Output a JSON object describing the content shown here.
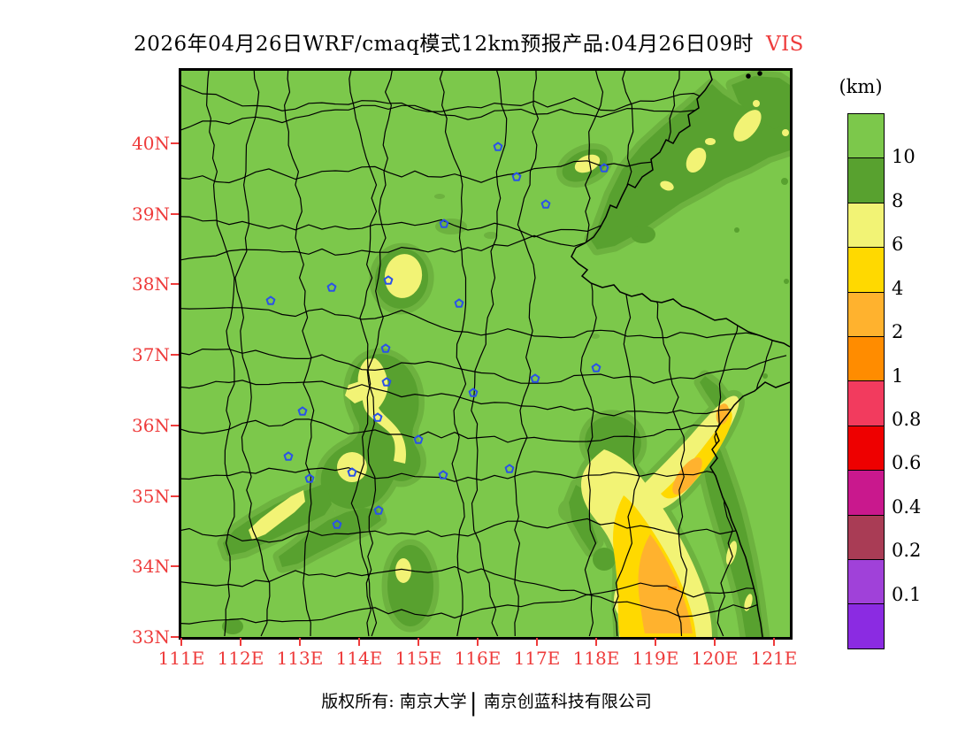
{
  "title": {
    "text": "2026年04月26日WRF/cmaq模式12km预报产品:04月26日09时",
    "variable": "VIS"
  },
  "colorbar": {
    "unit": "(km)",
    "labels": [
      "10",
      "8",
      "6",
      "4",
      "2",
      "1",
      "0.8",
      "0.6",
      "0.4",
      "0.2",
      "0.1"
    ],
    "colors": [
      "#7cc84b",
      "#58a12f",
      "#f2f375",
      "#ffd900",
      "#ffb22e",
      "#ff8c00",
      "#f23b5e",
      "#ee0000",
      "#c9188d",
      "#a93c55",
      "#a041d9",
      "#8b2be2"
    ]
  },
  "axes": {
    "lat_labels": [
      "40N",
      "39N",
      "38N",
      "37N",
      "36N",
      "35N",
      "34N",
      "33N"
    ],
    "lon_labels": [
      "111E",
      "112E",
      "113E",
      "114E",
      "115E",
      "116E",
      "117E",
      "118E",
      "119E",
      "120E",
      "121E"
    ],
    "label_color": "#ee3b3b"
  },
  "palette": {
    "base": "#7cc84b",
    "mid": "#6db23f",
    "dark": "#58a12f",
    "pale_yellow": "#f2f375",
    "yellow": "#ffd900",
    "light_orange": "#ffb22e",
    "orange": "#ff8c00",
    "boundary": "#000000",
    "marker": "#2a52e8"
  },
  "map": {
    "stations": [
      [
        358,
        86
      ],
      [
        379,
        120
      ],
      [
        412,
        151
      ],
      [
        297,
        173
      ],
      [
        478,
        110
      ],
      [
        234,
        237
      ],
      [
        314,
        263
      ],
      [
        170,
        245
      ],
      [
        101,
        260
      ],
      [
        231,
        314
      ],
      [
        330,
        364
      ],
      [
        400,
        348
      ],
      [
        469,
        336
      ],
      [
        232,
        352
      ],
      [
        137,
        385
      ],
      [
        222,
        392
      ],
      [
        268,
        417
      ],
      [
        121,
        436
      ],
      [
        193,
        454
      ],
      [
        296,
        457
      ],
      [
        371,
        450
      ],
      [
        145,
        461
      ],
      [
        223,
        497
      ],
      [
        176,
        513
      ]
    ]
  },
  "footer": {
    "left": "版权所有: 南京大学",
    "separator": "|",
    "right": "南京创蓝科技有限公司"
  }
}
